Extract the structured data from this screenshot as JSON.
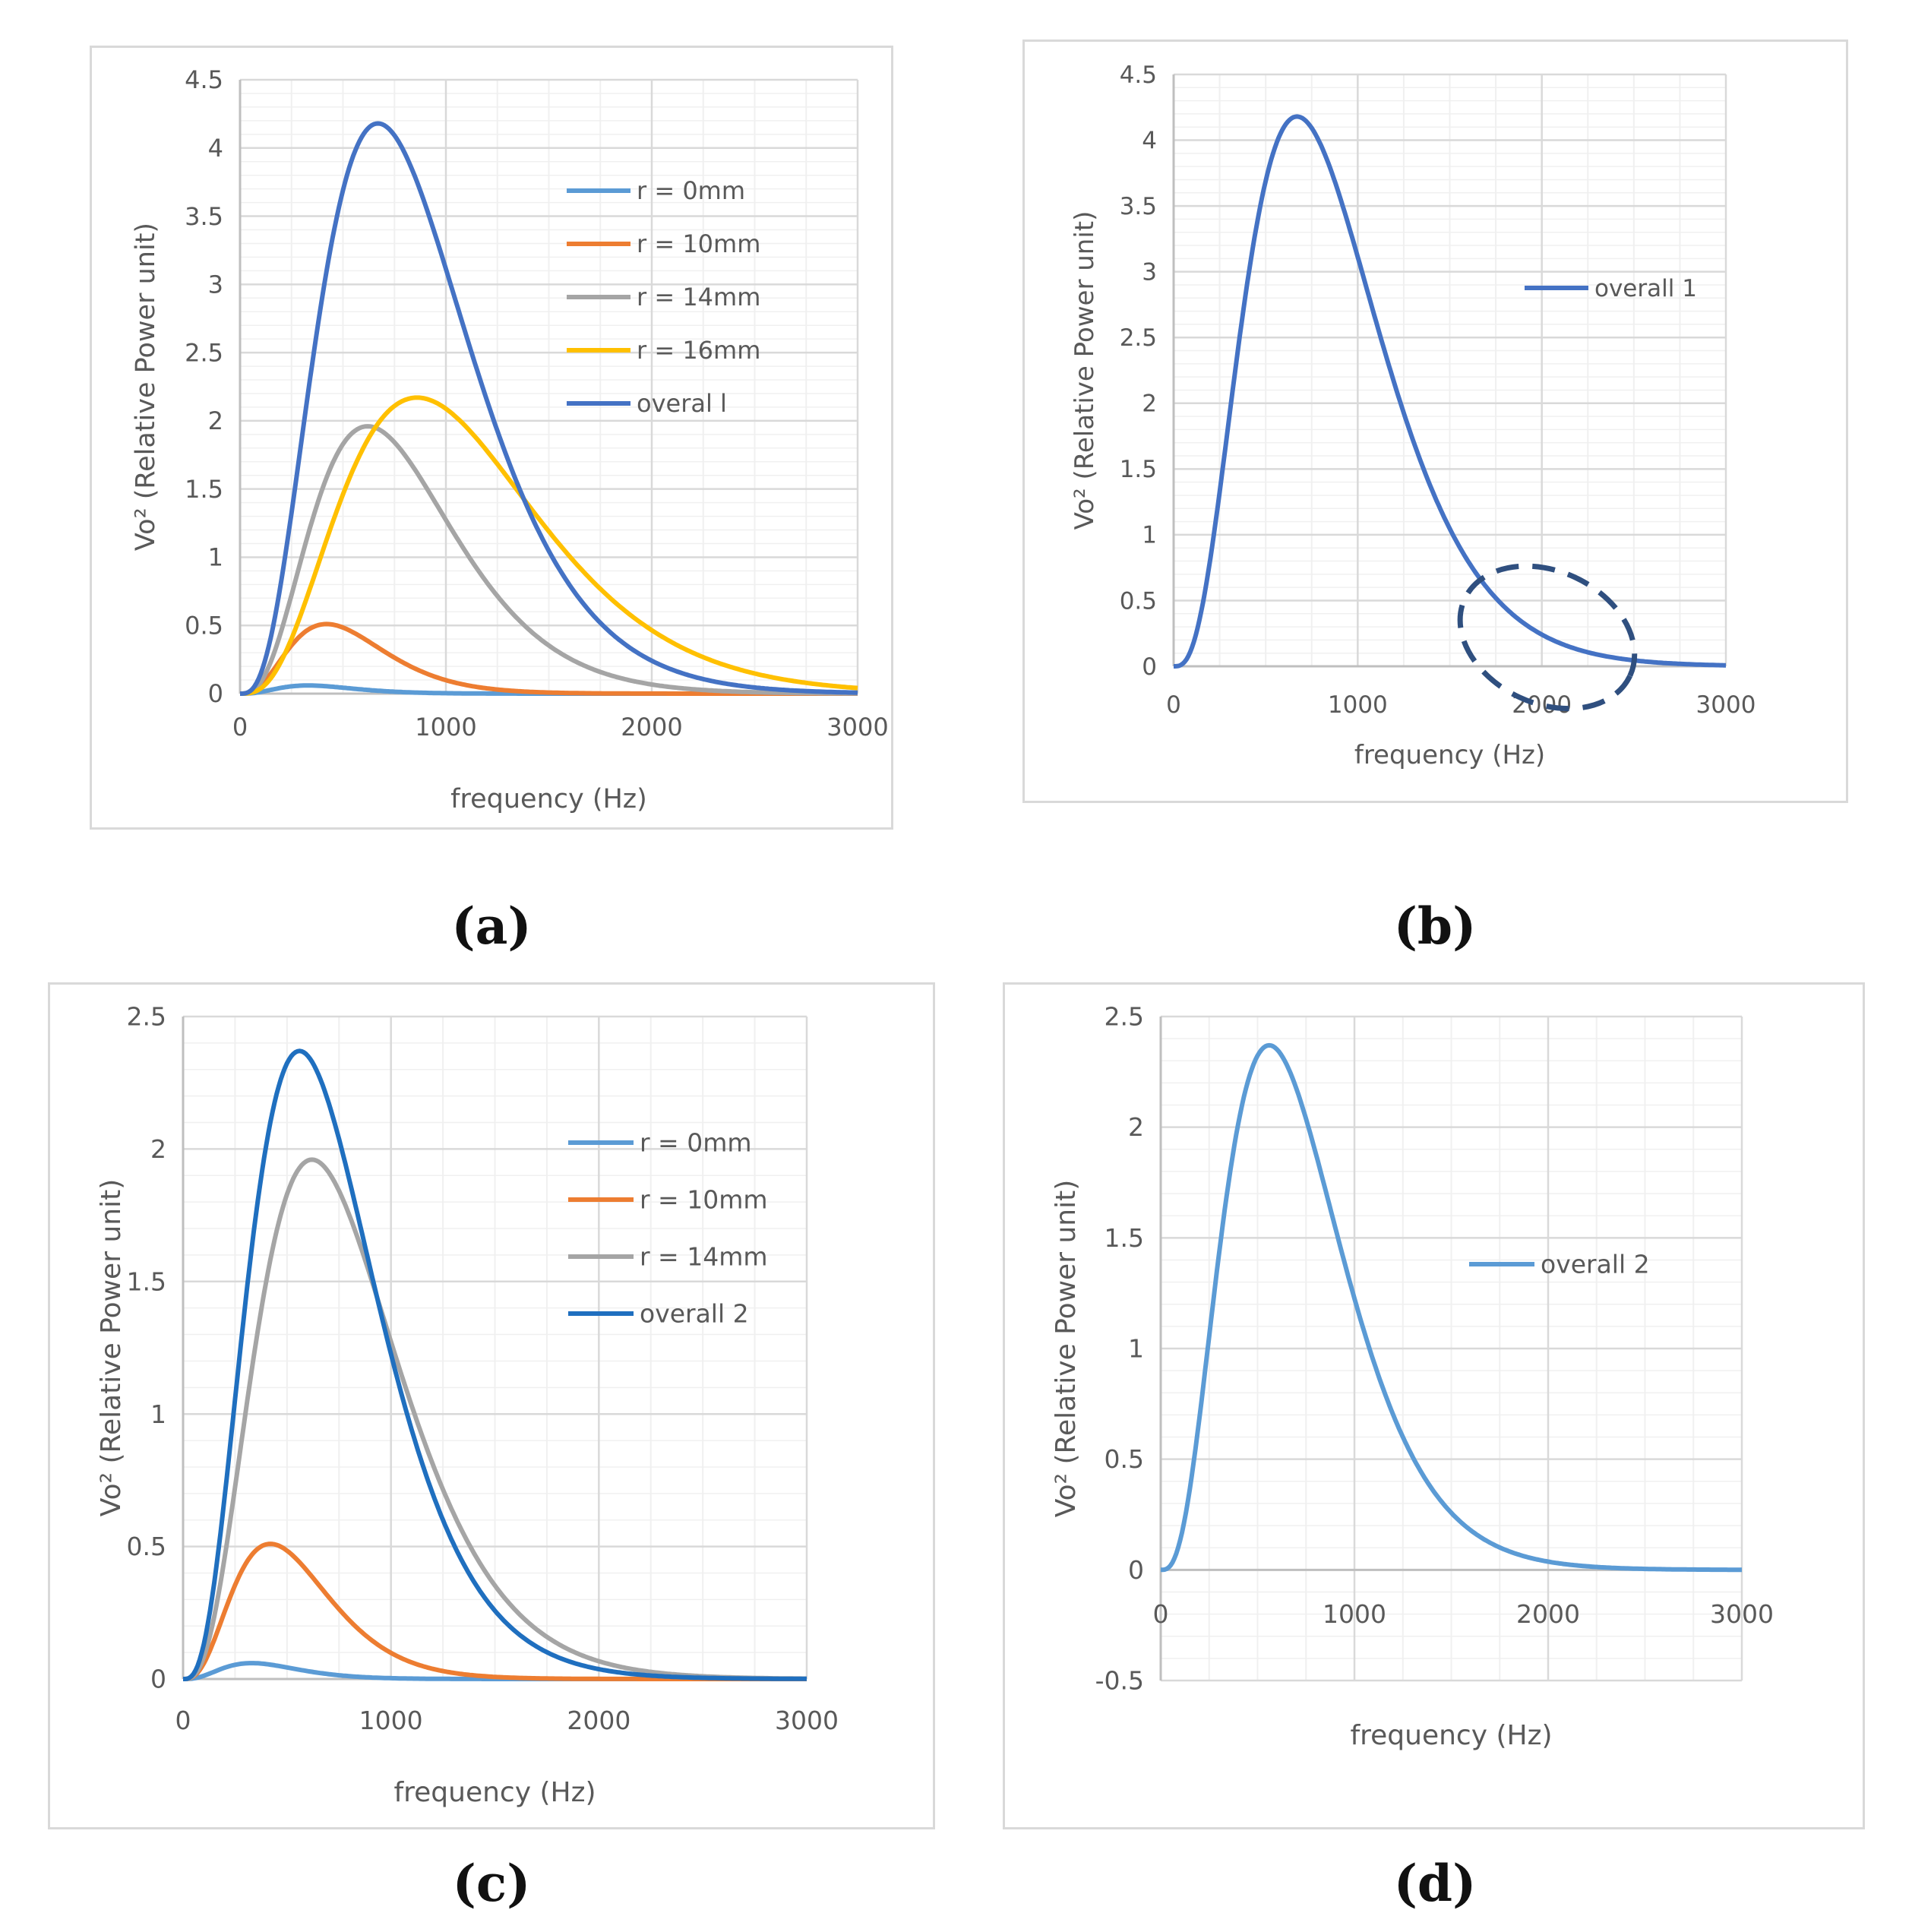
{
  "captions": {
    "a": "(a)",
    "b": "(b)",
    "c": "(c)",
    "d": "(d)"
  },
  "colors": {
    "r0": "#5b9bd5",
    "r10": "#ed7d31",
    "r14": "#a5a5a5",
    "r16": "#ffc000",
    "overall1": "#4472c4",
    "overall2_c": "#1f6fbf",
    "overall2_d": "#5b9bd5",
    "grid_major": "#d9d9d9",
    "grid_minor": "#f0f0f0",
    "highlight": "#2f4f7f"
  },
  "chart_data": [
    {
      "id": "a",
      "type": "line",
      "xlabel": "frequency (Hz)",
      "ylabel": "Vo² (Relative Power unit)",
      "xlim": [
        0,
        3000
      ],
      "ylim": [
        0,
        4.5
      ],
      "xticks": [
        "0",
        "1000",
        "2000",
        "3000"
      ],
      "yticks": [
        "0",
        "0.5",
        "1",
        "1.5",
        "2",
        "2.5",
        "3",
        "3.5",
        "4",
        "4.5"
      ],
      "legend_position": "right",
      "series": [
        {
          "name": "r = 0mm",
          "color_key": "r0",
          "peak_x": 330,
          "peak_y": 0.06
        },
        {
          "name": "r = 10mm",
          "color_key": "r10",
          "peak_x": 420,
          "peak_y": 0.51
        },
        {
          "name": "r = 14mm",
          "color_key": "r14",
          "peak_x": 620,
          "peak_y": 1.96
        },
        {
          "name": "r = 16mm",
          "color_key": "r16",
          "peak_x": 860,
          "peak_y": 2.17
        },
        {
          "name": "overal l",
          "color_key": "overall1",
          "peak_x": 670,
          "peak_y": 4.18
        }
      ]
    },
    {
      "id": "b",
      "type": "line",
      "xlabel": "frequency (Hz)",
      "ylabel": "Vo² (Relative Power unit)",
      "xlim": [
        0,
        3000
      ],
      "ylim": [
        0,
        4.5
      ],
      "xticks": [
        "0",
        "1000",
        "2000",
        "3000"
      ],
      "yticks": [
        "0",
        "0.5",
        "1",
        "1.5",
        "2",
        "2.5",
        "3",
        "3.5",
        "4",
        "4.5"
      ],
      "legend_position": "right",
      "annotation": "dashed ellipse around tail near 1900-2600 Hz",
      "series": [
        {
          "name": "overall 1",
          "color_key": "overall1",
          "peak_x": 670,
          "peak_y": 4.18
        }
      ]
    },
    {
      "id": "c",
      "type": "line",
      "xlabel": "frequency (Hz)",
      "ylabel": "Vo² (Relative Power unit)",
      "xlim": [
        0,
        3000
      ],
      "ylim": [
        0,
        2.5
      ],
      "xticks": [
        "0",
        "1000",
        "2000",
        "3000"
      ],
      "yticks": [
        "0",
        "0.5",
        "1",
        "1.5",
        "2",
        "2.5"
      ],
      "legend_position": "right",
      "series": [
        {
          "name": "r = 0mm",
          "color_key": "r0",
          "peak_x": 330,
          "peak_y": 0.06
        },
        {
          "name": "r = 10mm",
          "color_key": "r10",
          "peak_x": 420,
          "peak_y": 0.51
        },
        {
          "name": "r = 14mm",
          "color_key": "r14",
          "peak_x": 620,
          "peak_y": 1.96
        },
        {
          "name": "overall 2",
          "color_key": "overall2_c",
          "peak_x": 560,
          "peak_y": 2.37
        }
      ]
    },
    {
      "id": "d",
      "type": "line",
      "xlabel": "frequency (Hz)",
      "ylabel": "Vo² (Relative Power unit)",
      "xlim": [
        0,
        3000
      ],
      "ylim": [
        -0.5,
        2.5
      ],
      "xticks": [
        "0",
        "1000",
        "2000",
        "3000"
      ],
      "yticks": [
        "-0.5",
        "0",
        "0.5",
        "1",
        "1.5",
        "2",
        "2.5"
      ],
      "legend_position": "right",
      "series": [
        {
          "name": "overall 2",
          "color_key": "overall2_d",
          "peak_x": 560,
          "peak_y": 2.37
        }
      ]
    }
  ]
}
